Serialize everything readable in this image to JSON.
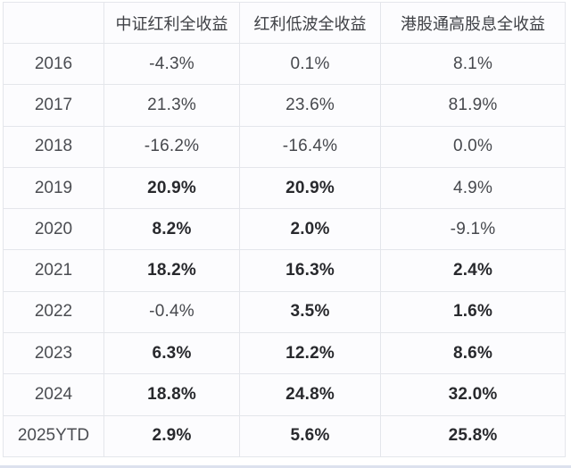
{
  "chart_data": {
    "type": "table",
    "title": "",
    "unit": "%",
    "categories": [
      "2016",
      "2017",
      "2018",
      "2019",
      "2020",
      "2021",
      "2022",
      "2023",
      "2024",
      "2025YTD"
    ],
    "series": [
      {
        "name": "中证红利全收益",
        "values": [
          -4.3,
          21.3,
          -16.2,
          20.9,
          8.2,
          18.2,
          -0.4,
          6.3,
          18.8,
          2.9
        ]
      },
      {
        "name": "红利低波全收益",
        "values": [
          0.1,
          23.6,
          -16.4,
          20.9,
          2.0,
          16.3,
          3.5,
          12.2,
          24.8,
          5.6
        ]
      },
      {
        "name": "港股通高股息全收益",
        "values": [
          8.1,
          81.9,
          0.0,
          4.9,
          -9.1,
          2.4,
          1.6,
          8.6,
          32.0,
          25.8
        ]
      }
    ]
  },
  "table": {
    "columns": [
      "",
      "中证红利全收益",
      "红利低波全收益",
      "港股通高股息全收益"
    ],
    "rows": [
      {
        "year": "2016",
        "values": [
          "-4.3%",
          "0.1%",
          "8.1%"
        ],
        "bold": [
          false,
          false,
          false
        ]
      },
      {
        "year": "2017",
        "values": [
          "21.3%",
          "23.6%",
          "81.9%"
        ],
        "bold": [
          false,
          false,
          false
        ]
      },
      {
        "year": "2018",
        "values": [
          "-16.2%",
          "-16.4%",
          "0.0%"
        ],
        "bold": [
          false,
          false,
          false
        ]
      },
      {
        "year": "2019",
        "values": [
          "20.9%",
          "20.9%",
          "4.9%"
        ],
        "bold": [
          true,
          true,
          false
        ]
      },
      {
        "year": "2020",
        "values": [
          "8.2%",
          "2.0%",
          "-9.1%"
        ],
        "bold": [
          true,
          true,
          false
        ]
      },
      {
        "year": "2021",
        "values": [
          "18.2%",
          "16.3%",
          "2.4%"
        ],
        "bold": [
          true,
          true,
          true
        ]
      },
      {
        "year": "2022",
        "values": [
          "-0.4%",
          "3.5%",
          "1.6%"
        ],
        "bold": [
          false,
          true,
          true
        ]
      },
      {
        "year": "2023",
        "values": [
          "6.3%",
          "12.2%",
          "8.6%"
        ],
        "bold": [
          true,
          true,
          true
        ]
      },
      {
        "year": "2024",
        "values": [
          "18.8%",
          "24.8%",
          "32.0%"
        ],
        "bold": [
          true,
          true,
          true
        ]
      },
      {
        "year": "2025YTD",
        "values": [
          "2.9%",
          "5.6%",
          "25.8%"
        ],
        "bold": [
          true,
          true,
          true
        ]
      }
    ]
  },
  "colors": {
    "cell_background": "#fcfcfe",
    "border": "#e4e6eb",
    "text_normal": "#46484d",
    "text_bold": "#28292d",
    "bottom_strip": "#dce1ee"
  }
}
